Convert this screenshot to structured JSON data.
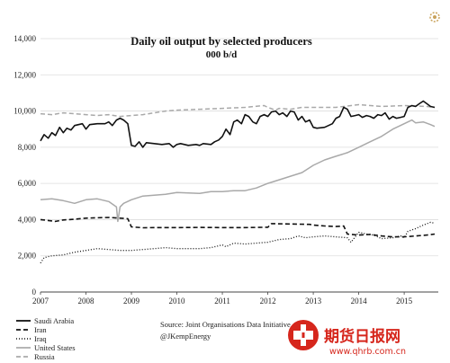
{
  "chart_data": {
    "type": "line",
    "title": "Daily oil output by selected producers",
    "subtitle": "000 b/d",
    "xlabel": "",
    "ylabel": "",
    "xlim": [
      2007,
      2015.75
    ],
    "ylim": [
      0,
      14000
    ],
    "x_ticks": [
      "2007",
      "2008",
      "2009",
      "2010",
      "2011",
      "2012",
      "2013",
      "2014",
      "2015"
    ],
    "y_ticks": [
      "0",
      "2,000",
      "4,000",
      "6,000",
      "8,000",
      "10,000",
      "12,000",
      "14,000"
    ],
    "grid": "horizontal",
    "legend_position": "bottom-left",
    "source": "Source: Joint Organisations Data Initiative",
    "handle": "@JKempEnergy",
    "series": [
      {
        "name": "Saudi Arabia",
        "color": "#111111",
        "style": "solid",
        "points": [
          [
            2007.0,
            8350
          ],
          [
            2007.08,
            8700
          ],
          [
            2007.17,
            8500
          ],
          [
            2007.25,
            8800
          ],
          [
            2007.33,
            8650
          ],
          [
            2007.42,
            9100
          ],
          [
            2007.5,
            8800
          ],
          [
            2007.58,
            9050
          ],
          [
            2007.67,
            8950
          ],
          [
            2007.75,
            9200
          ],
          [
            2007.92,
            9300
          ],
          [
            2008.0,
            9000
          ],
          [
            2008.08,
            9250
          ],
          [
            2008.25,
            9300
          ],
          [
            2008.42,
            9300
          ],
          [
            2008.5,
            9400
          ],
          [
            2008.58,
            9200
          ],
          [
            2008.67,
            9500
          ],
          [
            2008.75,
            9600
          ],
          [
            2008.83,
            9500
          ],
          [
            2008.92,
            9300
          ],
          [
            2009.0,
            8100
          ],
          [
            2009.08,
            8050
          ],
          [
            2009.17,
            8300
          ],
          [
            2009.25,
            8000
          ],
          [
            2009.33,
            8250
          ],
          [
            2009.5,
            8200
          ],
          [
            2009.67,
            8150
          ],
          [
            2009.83,
            8200
          ],
          [
            2009.92,
            8000
          ],
          [
            2010.0,
            8150
          ],
          [
            2010.08,
            8200
          ],
          [
            2010.25,
            8100
          ],
          [
            2010.42,
            8150
          ],
          [
            2010.5,
            8100
          ],
          [
            2010.58,
            8200
          ],
          [
            2010.75,
            8150
          ],
          [
            2010.83,
            8300
          ],
          [
            2010.92,
            8400
          ],
          [
            2011.0,
            8600
          ],
          [
            2011.08,
            9000
          ],
          [
            2011.17,
            8700
          ],
          [
            2011.25,
            9400
          ],
          [
            2011.33,
            9500
          ],
          [
            2011.42,
            9300
          ],
          [
            2011.5,
            9800
          ],
          [
            2011.58,
            9700
          ],
          [
            2011.67,
            9400
          ],
          [
            2011.75,
            9300
          ],
          [
            2011.83,
            9700
          ],
          [
            2011.92,
            9800
          ],
          [
            2012.0,
            9700
          ],
          [
            2012.08,
            9950
          ],
          [
            2012.17,
            10000
          ],
          [
            2012.25,
            9800
          ],
          [
            2012.33,
            9900
          ],
          [
            2012.42,
            9700
          ],
          [
            2012.5,
            10000
          ],
          [
            2012.58,
            9950
          ],
          [
            2012.67,
            9500
          ],
          [
            2012.75,
            9700
          ],
          [
            2012.83,
            9400
          ],
          [
            2012.92,
            9500
          ],
          [
            2013.0,
            9100
          ],
          [
            2013.08,
            9050
          ],
          [
            2013.25,
            9100
          ],
          [
            2013.42,
            9300
          ],
          [
            2013.5,
            9600
          ],
          [
            2013.58,
            9700
          ],
          [
            2013.67,
            10200
          ],
          [
            2013.75,
            10100
          ],
          [
            2013.83,
            9700
          ],
          [
            2013.92,
            9750
          ],
          [
            2014.0,
            9800
          ],
          [
            2014.08,
            9650
          ],
          [
            2014.17,
            9750
          ],
          [
            2014.25,
            9700
          ],
          [
            2014.33,
            9600
          ],
          [
            2014.42,
            9800
          ],
          [
            2014.5,
            9750
          ],
          [
            2014.58,
            9900
          ],
          [
            2014.67,
            9550
          ],
          [
            2014.75,
            9700
          ],
          [
            2014.83,
            9600
          ],
          [
            2014.92,
            9650
          ],
          [
            2015.0,
            9700
          ],
          [
            2015.08,
            10200
          ],
          [
            2015.17,
            10300
          ],
          [
            2015.25,
            10250
          ],
          [
            2015.33,
            10400
          ],
          [
            2015.42,
            10550
          ],
          [
            2015.5,
            10400
          ],
          [
            2015.58,
            10250
          ],
          [
            2015.67,
            10200
          ]
        ]
      },
      {
        "name": "Iran",
        "color": "#111111",
        "style": "dashed",
        "points": [
          [
            2007.0,
            4000
          ],
          [
            2007.17,
            3950
          ],
          [
            2007.33,
            3900
          ],
          [
            2007.5,
            3980
          ],
          [
            2007.75,
            4020
          ],
          [
            2008.0,
            4080
          ],
          [
            2008.25,
            4100
          ],
          [
            2008.5,
            4120
          ],
          [
            2008.75,
            4080
          ],
          [
            2008.92,
            4050
          ],
          [
            2009.0,
            3600
          ],
          [
            2009.25,
            3550
          ],
          [
            2009.5,
            3560
          ],
          [
            2010.0,
            3560
          ],
          [
            2010.5,
            3570
          ],
          [
            2011.0,
            3560
          ],
          [
            2011.5,
            3560
          ],
          [
            2012.0,
            3580
          ],
          [
            2012.08,
            3780
          ],
          [
            2012.5,
            3760
          ],
          [
            2012.92,
            3740
          ],
          [
            2013.0,
            3700
          ],
          [
            2013.25,
            3650
          ],
          [
            2013.5,
            3620
          ],
          [
            2013.67,
            3650
          ],
          [
            2013.75,
            3200
          ],
          [
            2014.0,
            3150
          ],
          [
            2014.25,
            3180
          ],
          [
            2014.5,
            3100
          ],
          [
            2014.75,
            3050
          ],
          [
            2015.0,
            3050
          ],
          [
            2015.25,
            3100
          ],
          [
            2015.5,
            3150
          ],
          [
            2015.67,
            3200
          ]
        ]
      },
      {
        "name": "Iraq",
        "color": "#111111",
        "style": "dotted",
        "points": [
          [
            2007.0,
            1600
          ],
          [
            2007.08,
            1900
          ],
          [
            2007.25,
            2000
          ],
          [
            2007.5,
            2050
          ],
          [
            2007.75,
            2200
          ],
          [
            2008.0,
            2300
          ],
          [
            2008.25,
            2400
          ],
          [
            2008.5,
            2350
          ],
          [
            2008.75,
            2300
          ],
          [
            2009.0,
            2300
          ],
          [
            2009.25,
            2350
          ],
          [
            2009.5,
            2400
          ],
          [
            2009.75,
            2450
          ],
          [
            2010.0,
            2400
          ],
          [
            2010.5,
            2400
          ],
          [
            2010.75,
            2450
          ],
          [
            2011.0,
            2600
          ],
          [
            2011.08,
            2500
          ],
          [
            2011.25,
            2700
          ],
          [
            2011.5,
            2650
          ],
          [
            2011.75,
            2700
          ],
          [
            2012.0,
            2750
          ],
          [
            2012.25,
            2900
          ],
          [
            2012.5,
            2950
          ],
          [
            2012.67,
            3100
          ],
          [
            2012.83,
            3000
          ],
          [
            2013.0,
            3050
          ],
          [
            2013.25,
            3100
          ],
          [
            2013.5,
            3050
          ],
          [
            2013.75,
            3000
          ],
          [
            2013.83,
            2750
          ],
          [
            2014.0,
            3300
          ],
          [
            2014.17,
            3200
          ],
          [
            2014.33,
            3150
          ],
          [
            2014.5,
            2950
          ],
          [
            2014.75,
            3000
          ],
          [
            2014.92,
            3100
          ],
          [
            2015.0,
            3000
          ],
          [
            2015.08,
            3350
          ],
          [
            2015.25,
            3500
          ],
          [
            2015.42,
            3700
          ],
          [
            2015.58,
            3850
          ],
          [
            2015.67,
            3800
          ]
        ]
      },
      {
        "name": "United States",
        "color": "#a9a9a9",
        "style": "solid",
        "points": [
          [
            2007.0,
            5100
          ],
          [
            2007.25,
            5150
          ],
          [
            2007.5,
            5050
          ],
          [
            2007.75,
            4900
          ],
          [
            2008.0,
            5100
          ],
          [
            2008.25,
            5150
          ],
          [
            2008.5,
            5000
          ],
          [
            2008.67,
            4700
          ],
          [
            2008.7,
            3900
          ],
          [
            2008.75,
            4700
          ],
          [
            2008.83,
            4900
          ],
          [
            2009.0,
            5100
          ],
          [
            2009.25,
            5300
          ],
          [
            2009.5,
            5350
          ],
          [
            2009.75,
            5400
          ],
          [
            2010.0,
            5500
          ],
          [
            2010.5,
            5450
          ],
          [
            2010.75,
            5550
          ],
          [
            2011.0,
            5550
          ],
          [
            2011.25,
            5600
          ],
          [
            2011.5,
            5600
          ],
          [
            2011.75,
            5750
          ],
          [
            2012.0,
            6000
          ],
          [
            2012.25,
            6200
          ],
          [
            2012.5,
            6400
          ],
          [
            2012.75,
            6600
          ],
          [
            2013.0,
            7000
          ],
          [
            2013.25,
            7300
          ],
          [
            2013.5,
            7500
          ],
          [
            2013.75,
            7700
          ],
          [
            2014.0,
            8000
          ],
          [
            2014.25,
            8300
          ],
          [
            2014.5,
            8600
          ],
          [
            2014.75,
            9000
          ],
          [
            2015.0,
            9300
          ],
          [
            2015.17,
            9500
          ],
          [
            2015.25,
            9350
          ],
          [
            2015.42,
            9400
          ],
          [
            2015.58,
            9250
          ],
          [
            2015.67,
            9150
          ]
        ]
      },
      {
        "name": "Russia",
        "color": "#a9a9a9",
        "style": "dashed",
        "points": [
          [
            2007.0,
            9850
          ],
          [
            2007.25,
            9800
          ],
          [
            2007.5,
            9900
          ],
          [
            2007.75,
            9850
          ],
          [
            2008.0,
            9800
          ],
          [
            2008.25,
            9750
          ],
          [
            2008.5,
            9800
          ],
          [
            2008.75,
            9700
          ],
          [
            2009.0,
            9750
          ],
          [
            2009.25,
            9800
          ],
          [
            2009.5,
            9900
          ],
          [
            2009.75,
            10000
          ],
          [
            2010.0,
            10050
          ],
          [
            2010.5,
            10100
          ],
          [
            2011.0,
            10150
          ],
          [
            2011.5,
            10200
          ],
          [
            2011.92,
            10300
          ],
          [
            2012.0,
            10200
          ],
          [
            2012.17,
            10050
          ],
          [
            2012.25,
            10150
          ],
          [
            2012.5,
            10100
          ],
          [
            2012.75,
            10200
          ],
          [
            2013.0,
            10200
          ],
          [
            2013.5,
            10200
          ],
          [
            2014.0,
            10350
          ],
          [
            2014.5,
            10250
          ],
          [
            2015.0,
            10300
          ],
          [
            2015.5,
            10250
          ],
          [
            2015.67,
            10200
          ]
        ]
      }
    ]
  },
  "watermark": {
    "text_cn": "期货日报网",
    "url": "www.qhrb.com.cn"
  }
}
